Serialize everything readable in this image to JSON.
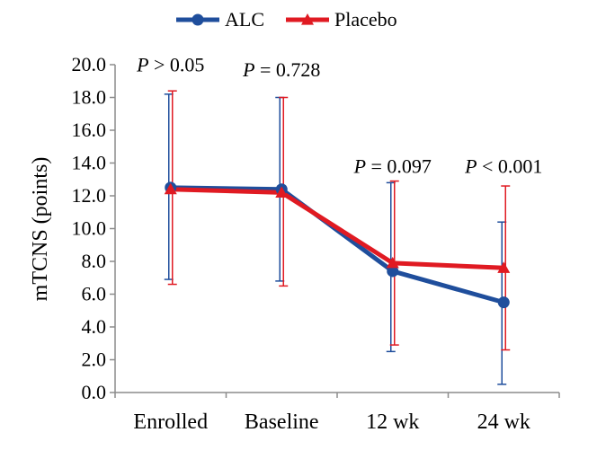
{
  "chart_data": {
    "type": "line",
    "title": "",
    "xlabel": "",
    "ylabel": "mTCNS (points)",
    "ylim": [
      0,
      20
    ],
    "ytick_step": 2,
    "ytick_labels": [
      "0.0",
      "2.0",
      "4.0",
      "6.0",
      "8.0",
      "10.0",
      "12.0",
      "14.0",
      "16.0",
      "18.0",
      "20.0"
    ],
    "categories": [
      "Enrolled",
      "Baseline",
      "12 wk",
      "24 wk"
    ],
    "grid": false,
    "legend_position": "top-center",
    "series": [
      {
        "name": "ALC",
        "color": "#1f4e9c",
        "marker": "circle",
        "values": [
          12.5,
          12.4,
          7.4,
          5.5
        ],
        "err_low": [
          6.9,
          6.8,
          2.5,
          0.5
        ],
        "err_high": [
          18.2,
          18.0,
          12.8,
          10.4
        ]
      },
      {
        "name": "Placebo",
        "color": "#e01a22",
        "marker": "triangle",
        "values": [
          12.4,
          12.2,
          7.9,
          7.6
        ],
        "err_low": [
          6.6,
          6.5,
          2.9,
          2.6
        ],
        "err_high": [
          18.4,
          18.0,
          12.9,
          12.6
        ]
      }
    ],
    "annotations": [
      {
        "category": 0,
        "p": "P",
        "rest": " > 0.05",
        "y": 19.6
      },
      {
        "category": 1,
        "p": "P",
        "rest": " = 0.728",
        "y": 19.3
      },
      {
        "category": 2,
        "p": "P",
        "rest": " = 0.097",
        "y": 13.4
      },
      {
        "category": 3,
        "p": "P",
        "rest": " < 0.001",
        "y": 13.4
      }
    ]
  }
}
